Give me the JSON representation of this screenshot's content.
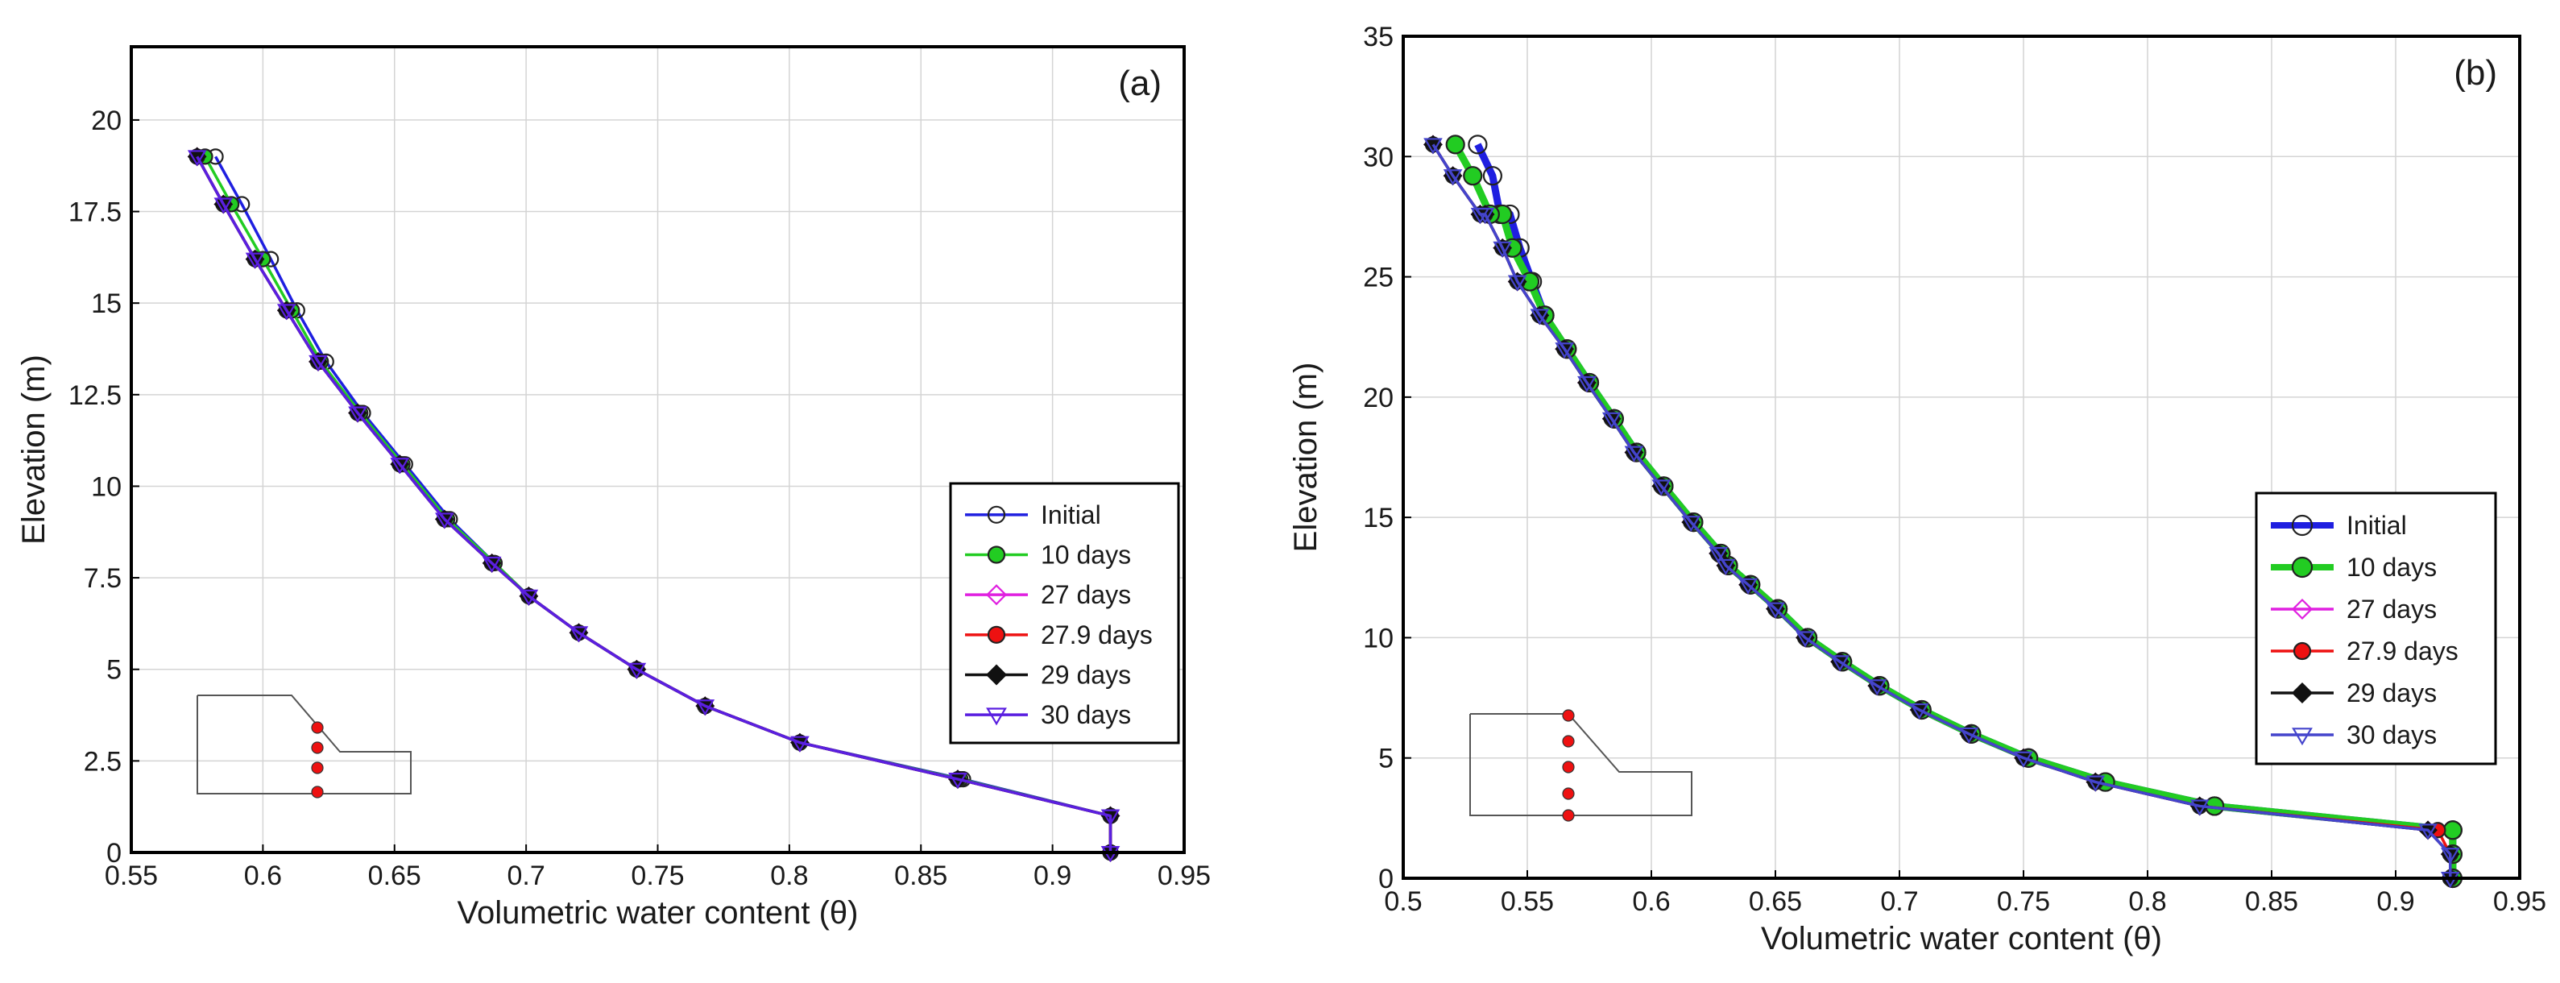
{
  "figure": {
    "description_labels": [
      "(a)",
      "(b)"
    ]
  },
  "chart_data": [
    {
      "type": "line",
      "panel_label": "(a)",
      "xlabel": "Volumetric water content (θ)",
      "ylabel": "Elevation (m)",
      "xlim": [
        0.55,
        0.95
      ],
      "ylim": [
        0,
        22
      ],
      "xticks": [
        "0.55",
        "0.6",
        "0.65",
        "0.7",
        "0.75",
        "0.8",
        "0.85",
        "0.9",
        "0.95"
      ],
      "xtick_values": [
        0.55,
        0.6,
        0.65,
        0.7,
        0.75,
        0.8,
        0.85,
        0.9,
        0.95
      ],
      "yticks": [
        "0",
        "2.5",
        "5",
        "7.5",
        "10",
        "12.5",
        "15",
        "17.5",
        "20"
      ],
      "ytick_values": [
        0,
        2.5,
        5,
        7.5,
        10,
        12.5,
        15,
        17.5,
        20
      ],
      "grid": true,
      "legend_position": "center-right",
      "series": [
        {
          "name": "Initial",
          "color": "#1f1fe0",
          "marker": "open-circle",
          "thick": false,
          "x": [
            0.922,
            0.922,
            0.866,
            0.804,
            0.768,
            0.742,
            0.72,
            0.701,
            0.688,
            0.671,
            0.654,
            0.638,
            0.624,
            0.613,
            0.603,
            0.592,
            0.582
          ],
          "y": [
            0,
            1,
            2,
            3,
            4,
            5,
            6,
            7,
            7.9,
            9.1,
            10.6,
            12,
            13.4,
            14.8,
            16.2,
            17.7,
            19
          ]
        },
        {
          "name": "10 days",
          "color": "#22cc22",
          "marker": "filled-circle",
          "thick": false,
          "x": [
            0.922,
            0.922,
            0.865,
            0.804,
            0.768,
            0.742,
            0.72,
            0.701,
            0.688,
            0.67,
            0.653,
            0.637,
            0.622,
            0.611,
            0.6,
            0.588,
            0.578
          ],
          "y": [
            0,
            1,
            2,
            3,
            4,
            5,
            6,
            7,
            7.9,
            9.1,
            10.6,
            12,
            13.4,
            14.8,
            16.2,
            17.7,
            19
          ]
        },
        {
          "name": "27 days",
          "color": "#e020e0",
          "marker": "open-diamond",
          "thick": false,
          "x": [
            0.922,
            0.922,
            0.864,
            0.804,
            0.768,
            0.742,
            0.72,
            0.701,
            0.687,
            0.669,
            0.652,
            0.636,
            0.621,
            0.609,
            0.597,
            0.585,
            0.575
          ],
          "y": [
            0,
            1,
            2,
            3,
            4,
            5,
            6,
            7,
            7.9,
            9.1,
            10.6,
            12,
            13.4,
            14.8,
            16.2,
            17.7,
            19
          ]
        },
        {
          "name": "27.9 days",
          "color": "#ee1111",
          "marker": "filled-circle",
          "thick": false,
          "x": [
            0.922,
            0.922,
            0.864,
            0.804,
            0.768,
            0.742,
            0.72,
            0.701,
            0.687,
            0.669,
            0.652,
            0.636,
            0.621,
            0.609,
            0.597,
            0.585,
            0.575
          ],
          "y": [
            0,
            1,
            2,
            3,
            4,
            5,
            6,
            7,
            7.9,
            9.1,
            10.6,
            12,
            13.4,
            14.8,
            16.2,
            17.7,
            19
          ]
        },
        {
          "name": "29 days",
          "color": "#111111",
          "marker": "filled-diamond",
          "thick": false,
          "x": [
            0.922,
            0.922,
            0.864,
            0.804,
            0.768,
            0.742,
            0.72,
            0.701,
            0.687,
            0.669,
            0.652,
            0.636,
            0.621,
            0.609,
            0.597,
            0.585,
            0.575
          ],
          "y": [
            0,
            1,
            2,
            3,
            4,
            5,
            6,
            7,
            7.9,
            9.1,
            10.6,
            12,
            13.4,
            14.8,
            16.2,
            17.7,
            19
          ]
        },
        {
          "name": "30 days",
          "color": "#5a1fe0",
          "marker": "open-triangle-down",
          "thick": false,
          "x": [
            0.922,
            0.922,
            0.864,
            0.804,
            0.768,
            0.742,
            0.72,
            0.701,
            0.687,
            0.669,
            0.652,
            0.636,
            0.621,
            0.609,
            0.597,
            0.585,
            0.575
          ],
          "y": [
            0,
            1,
            2,
            3,
            4,
            5,
            6,
            7,
            7.9,
            9.1,
            10.6,
            12,
            13.4,
            14.8,
            16.2,
            17.7,
            19
          ]
        }
      ]
    },
    {
      "type": "line",
      "panel_label": "(b)",
      "xlabel": "Volumetric water content (θ)",
      "ylabel": "Elevation (m)",
      "xlim": [
        0.5,
        0.95
      ],
      "ylim": [
        0,
        35
      ],
      "xticks": [
        "0.5",
        "0.55",
        "0.6",
        "0.65",
        "0.7",
        "0.75",
        "0.8",
        "0.85",
        "0.9",
        "0.95"
      ],
      "xtick_values": [
        0.5,
        0.55,
        0.6,
        0.65,
        0.7,
        0.75,
        0.8,
        0.85,
        0.9,
        0.95
      ],
      "yticks": [
        "0",
        "5",
        "10",
        "15",
        "20",
        "25",
        "30",
        "35"
      ],
      "ytick_values": [
        0,
        5,
        10,
        15,
        20,
        25,
        30,
        35
      ],
      "grid": true,
      "legend_position": "center-right",
      "series": [
        {
          "name": "Initial",
          "color": "#1f1fe0",
          "marker": "open-circle",
          "thick": true,
          "x": [
            0.923,
            0.923,
            0.923,
            0.827,
            0.783,
            0.752,
            0.729,
            0.709,
            0.692,
            0.677,
            0.663,
            0.651,
            0.64,
            0.631,
            0.628,
            0.617,
            0.605,
            0.594,
            0.585,
            0.575,
            0.566,
            0.557,
            0.552,
            0.547,
            0.543,
            0.539,
            0.536,
            0.53
          ],
          "y": [
            0,
            1,
            2,
            3,
            4,
            5,
            6,
            7,
            8,
            9,
            10,
            11.2,
            12.2,
            13,
            13.5,
            14.8,
            16.3,
            17.7,
            19.1,
            20.6,
            22,
            23.4,
            24.8,
            26.2,
            27.6,
            27.6,
            29.2,
            30.5
          ]
        },
        {
          "name": "10 days",
          "color": "#22cc22",
          "marker": "filled-circle",
          "thick": true,
          "x": [
            0.923,
            0.923,
            0.923,
            0.827,
            0.783,
            0.752,
            0.729,
            0.709,
            0.692,
            0.677,
            0.663,
            0.651,
            0.64,
            0.631,
            0.628,
            0.617,
            0.605,
            0.594,
            0.585,
            0.575,
            0.566,
            0.557,
            0.551,
            0.544,
            0.54,
            0.535,
            0.528,
            0.521
          ],
          "y": [
            0,
            1,
            2,
            3,
            4,
            5,
            6,
            7,
            8,
            9,
            10,
            11.2,
            12.2,
            13,
            13.5,
            14.8,
            16.3,
            17.7,
            19.1,
            20.6,
            22,
            23.4,
            24.8,
            26.2,
            27.6,
            27.6,
            29.2,
            30.5
          ]
        },
        {
          "name": "27 days",
          "color": "#e020e0",
          "marker": "open-diamond",
          "thick": false,
          "x": [
            0.922,
            0.922,
            0.913,
            0.821,
            0.779,
            0.75,
            0.728,
            0.708,
            0.691,
            0.676,
            0.662,
            0.65,
            0.639,
            0.63,
            0.627,
            0.616,
            0.604,
            0.593,
            0.584,
            0.574,
            0.565,
            0.555,
            0.546,
            0.54,
            0.533,
            0.531,
            0.52,
            0.512
          ],
          "y": [
            0,
            1,
            2,
            3,
            4,
            5,
            6,
            7,
            8,
            9,
            10,
            11.2,
            12.2,
            13,
            13.5,
            14.8,
            16.3,
            17.7,
            19.1,
            20.6,
            22,
            23.4,
            24.8,
            26.2,
            27.6,
            27.6,
            29.2,
            30.5
          ]
        },
        {
          "name": "27.9 days",
          "color": "#ee1111",
          "marker": "filled-circle",
          "thick": false,
          "x": [
            0.922,
            0.922,
            0.917,
            0.821,
            0.779,
            0.75,
            0.728,
            0.708,
            0.691,
            0.676,
            0.662,
            0.65,
            0.639,
            0.63,
            0.627,
            0.616,
            0.604,
            0.593,
            0.584,
            0.574,
            0.565,
            0.555,
            0.546,
            0.54,
            0.533,
            0.531,
            0.52,
            0.512
          ],
          "y": [
            0,
            1,
            2,
            3,
            4,
            5,
            6,
            7,
            8,
            9,
            10,
            11.2,
            12.2,
            13,
            13.5,
            14.8,
            16.3,
            17.7,
            19.1,
            20.6,
            22,
            23.4,
            24.8,
            26.2,
            27.6,
            27.6,
            29.2,
            30.5
          ]
        },
        {
          "name": "29 days",
          "color": "#111111",
          "marker": "filled-diamond",
          "thick": false,
          "x": [
            0.922,
            0.922,
            0.913,
            0.821,
            0.779,
            0.75,
            0.728,
            0.708,
            0.691,
            0.676,
            0.662,
            0.65,
            0.639,
            0.63,
            0.627,
            0.616,
            0.604,
            0.593,
            0.584,
            0.574,
            0.565,
            0.555,
            0.546,
            0.54,
            0.533,
            0.531,
            0.52,
            0.512
          ],
          "y": [
            0,
            1,
            2,
            3,
            4,
            5,
            6,
            7,
            8,
            9,
            10,
            11.2,
            12.2,
            13,
            13.5,
            14.8,
            16.3,
            17.7,
            19.1,
            20.6,
            22,
            23.4,
            24.8,
            26.2,
            27.6,
            27.6,
            29.2,
            30.5
          ]
        },
        {
          "name": "30 days",
          "color": "#4444cc",
          "marker": "open-triangle-down",
          "thick": false,
          "x": [
            0.922,
            0.922,
            0.913,
            0.821,
            0.779,
            0.75,
            0.728,
            0.708,
            0.691,
            0.676,
            0.662,
            0.65,
            0.639,
            0.63,
            0.627,
            0.616,
            0.604,
            0.593,
            0.584,
            0.574,
            0.565,
            0.555,
            0.546,
            0.54,
            0.533,
            0.531,
            0.52,
            0.512
          ],
          "y": [
            0,
            1,
            2,
            3,
            4,
            5,
            6,
            7,
            8,
            9,
            10,
            11.2,
            12.2,
            13,
            13.5,
            14.8,
            16.3,
            17.7,
            19.1,
            20.6,
            22,
            23.4,
            24.8,
            26.2,
            27.6,
            27.6,
            29.2,
            30.5
          ]
        }
      ]
    }
  ]
}
